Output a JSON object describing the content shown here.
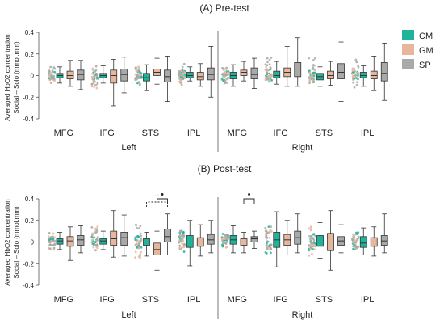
{
  "colors": {
    "CM": "#1fb39a",
    "GM": "#e6b79c",
    "SP": "#a9a9a9",
    "axis": "#555555"
  },
  "chart_data": [
    {
      "type": "box",
      "title": "(A) Pre-test",
      "ylabel_line1": "Averaged HbO2 concentration",
      "ylabel_line2": "Social – Solo (mmol.mm)",
      "ylim": [
        -0.4,
        0.4
      ],
      "yticks": [
        "0.4",
        "0.2",
        "0",
        "-0.2",
        "-0.4"
      ],
      "categories": [
        "MFG",
        "IFG",
        "STS",
        "IPL",
        "MFG",
        "IFG",
        "STS",
        "IPL"
      ],
      "groups": [
        "Left",
        "Right"
      ],
      "series": [
        {
          "name": "CM",
          "boxes": [
            [
              -0.07,
              -0.02,
              0.0,
              0.02,
              0.08
            ],
            [
              -0.07,
              -0.02,
              0.0,
              0.02,
              0.09
            ],
            [
              -0.14,
              -0.05,
              -0.02,
              0.02,
              0.1
            ],
            [
              -0.05,
              -0.02,
              0.0,
              0.03,
              0.08
            ],
            [
              -0.1,
              -0.03,
              0.0,
              0.03,
              0.1
            ],
            [
              -0.08,
              -0.02,
              0.0,
              0.04,
              0.13
            ],
            [
              -0.1,
              -0.04,
              -0.01,
              0.02,
              0.08
            ],
            [
              -0.1,
              -0.02,
              0.0,
              0.03,
              0.09
            ]
          ]
        },
        {
          "name": "GM",
          "boxes": [
            [
              -0.1,
              -0.03,
              0.0,
              0.04,
              0.14
            ],
            [
              -0.28,
              -0.07,
              0.0,
              0.05,
              0.15
            ],
            [
              -0.08,
              0.0,
              0.03,
              0.06,
              0.16
            ],
            [
              -0.1,
              -0.04,
              -0.01,
              0.03,
              0.11
            ],
            [
              -0.05,
              0.0,
              0.03,
              0.05,
              0.13
            ],
            [
              -0.1,
              -0.01,
              0.03,
              0.07,
              0.27
            ],
            [
              -0.09,
              -0.03,
              0.0,
              0.04,
              0.13
            ],
            [
              -0.14,
              -0.03,
              0.0,
              0.04,
              0.18
            ]
          ]
        },
        {
          "name": "SP",
          "boxes": [
            [
              -0.13,
              -0.04,
              0.01,
              0.05,
              0.14
            ],
            [
              -0.16,
              -0.05,
              0.01,
              0.06,
              0.17
            ],
            [
              -0.24,
              -0.06,
              -0.01,
              0.05,
              0.18
            ],
            [
              -0.2,
              -0.04,
              0.01,
              0.07,
              0.27
            ],
            [
              -0.12,
              -0.03,
              0.01,
              0.07,
              0.16
            ],
            [
              -0.1,
              -0.01,
              0.06,
              0.12,
              0.35
            ],
            [
              -0.24,
              -0.03,
              0.03,
              0.11,
              0.31
            ],
            [
              -0.23,
              -0.05,
              0.02,
              0.12,
              0.3
            ]
          ]
        }
      ],
      "significance": []
    },
    {
      "type": "box",
      "title": "(B) Post-test",
      "ylabel_line1": "Averaged HbO2 concentration",
      "ylabel_line2": "Social – Solo (mmol.mm)",
      "ylim": [
        -0.4,
        0.4
      ],
      "yticks": [
        "0.4",
        "0.2",
        "0",
        "-0.2",
        "-0.4"
      ],
      "categories": [
        "MFG",
        "IFG",
        "STS",
        "IPL",
        "MFG",
        "IFG",
        "STS",
        "IPL"
      ],
      "groups": [
        "Left",
        "Right"
      ],
      "series": [
        {
          "name": "CM",
          "boxes": [
            [
              -0.07,
              -0.02,
              0.01,
              0.03,
              0.09
            ],
            [
              -0.07,
              -0.02,
              0.01,
              0.03,
              0.1
            ],
            [
              -0.13,
              -0.03,
              0.0,
              0.03,
              0.09
            ],
            [
              -0.22,
              -0.05,
              0.0,
              0.06,
              0.2
            ],
            [
              -0.1,
              -0.02,
              0.02,
              0.06,
              0.15
            ],
            [
              -0.23,
              -0.05,
              0.02,
              0.09,
              0.28
            ],
            [
              -0.15,
              -0.04,
              0.0,
              0.06,
              0.18
            ],
            [
              -0.12,
              -0.05,
              -0.01,
              0.05,
              0.13
            ]
          ]
        },
        {
          "name": "GM",
          "boxes": [
            [
              -0.17,
              -0.04,
              0.01,
              0.05,
              0.14
            ],
            [
              -0.14,
              -0.03,
              0.03,
              0.1,
              0.29
            ],
            [
              -0.26,
              -0.12,
              -0.07,
              -0.01,
              0.1
            ],
            [
              -0.13,
              -0.04,
              0.0,
              0.04,
              0.16
            ],
            [
              -0.1,
              -0.03,
              0.0,
              0.03,
              0.09
            ],
            [
              -0.12,
              -0.03,
              0.02,
              0.07,
              0.2
            ],
            [
              -0.26,
              -0.08,
              0.0,
              0.08,
              0.29
            ],
            [
              -0.13,
              -0.04,
              0.0,
              0.04,
              0.14
            ]
          ]
        },
        {
          "name": "SP",
          "boxes": [
            [
              -0.1,
              -0.03,
              0.02,
              0.06,
              0.15
            ],
            [
              -0.13,
              -0.03,
              0.04,
              0.09,
              0.25
            ],
            [
              -0.12,
              0.0,
              0.05,
              0.12,
              0.26
            ],
            [
              -0.1,
              -0.02,
              0.02,
              0.07,
              0.2
            ],
            [
              -0.06,
              0.0,
              0.03,
              0.05,
              0.1
            ],
            [
              -0.1,
              -0.02,
              0.04,
              0.1,
              0.26
            ],
            [
              -0.1,
              -0.03,
              0.01,
              0.05,
              0.16
            ],
            [
              -0.1,
              -0.03,
              0.01,
              0.06,
              0.26
            ]
          ]
        }
      ],
      "significance": [
        {
          "category_index": 2,
          "between": [
            "CM",
            "SP"
          ],
          "marker": "†"
        },
        {
          "category_index": 2,
          "between": [
            "GM",
            "SP"
          ],
          "marker": "•"
        },
        {
          "category_index": 4,
          "between": [
            "GM",
            "SP"
          ],
          "marker": "•"
        }
      ]
    }
  ],
  "legend": [
    "CM",
    "GM",
    "SP"
  ]
}
